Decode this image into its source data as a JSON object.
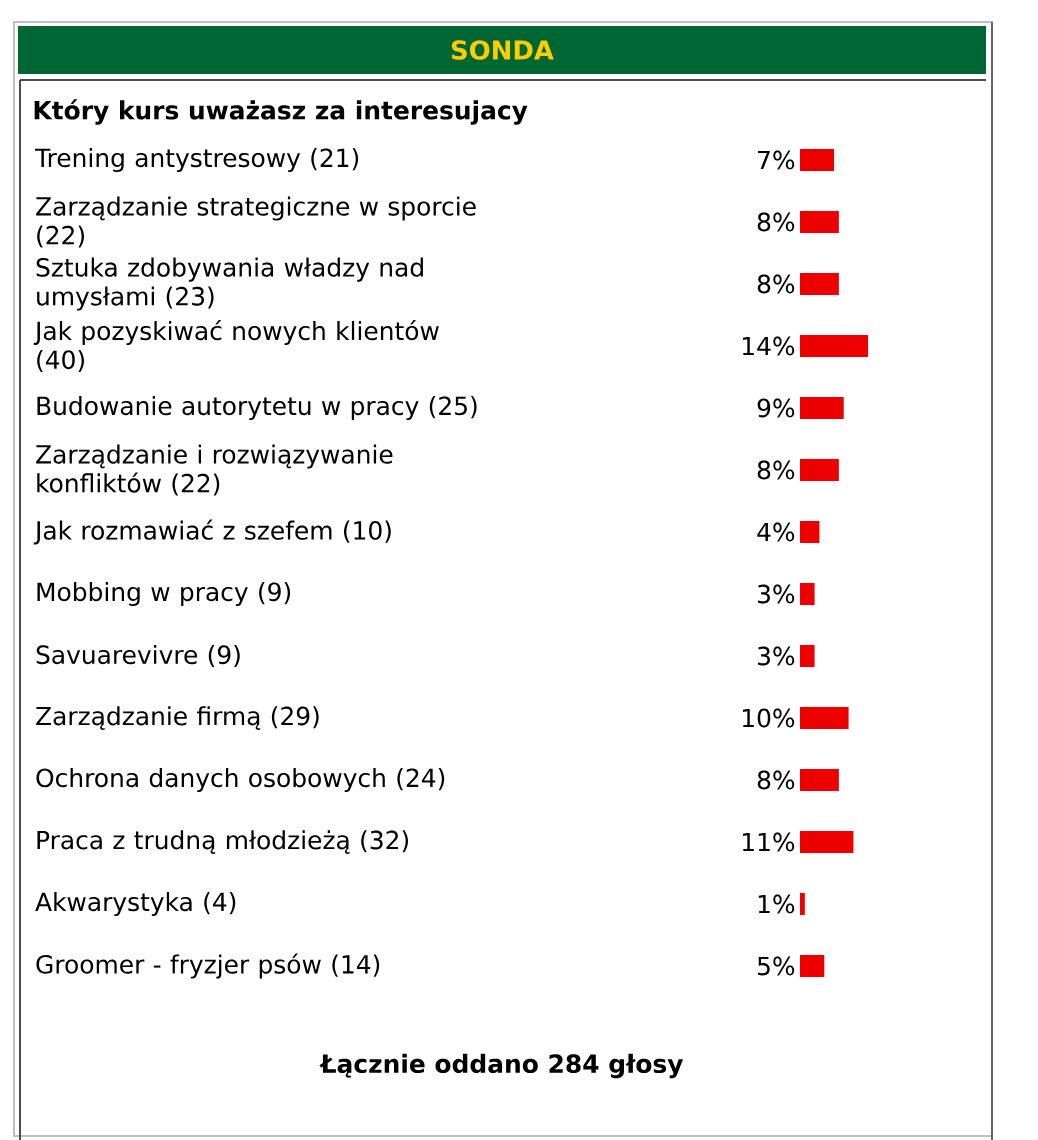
{
  "chart_data": {
    "type": "bar",
    "orientation": "horizontal",
    "title": "SONDA",
    "subtitle": "Który kurs uważasz za interesujacy",
    "categories": [
      "Trening antystresowy (21)",
      "Zarządzanie strategiczne w sporcie (22)",
      "Sztuka zdobywania władzy nad umysłami (23)",
      "Jak pozyskiwać nowych klientów (40)",
      "Budowanie autorytetu w pracy (25)",
      "Zarządzanie i rozwiązywanie konfliktów (22)",
      "Jak rozmawiać z szefem (10)",
      "Mobbing w pracy (9)",
      "Savuarevivre (9)",
      "Zarządzanie firmą (29)",
      "Ochrona danych osobowych (24)",
      "Praca z trudną młodzieżą (32)",
      "Akwarystyka (4)",
      "Groomer - fryzjer psów (14)"
    ],
    "values": [
      7,
      8,
      8,
      14,
      9,
      8,
      4,
      3,
      3,
      10,
      8,
      11,
      1,
      5
    ],
    "value_labels": [
      "7%",
      "8%",
      "8%",
      "14%",
      "9%",
      "8%",
      "4%",
      "3%",
      "3%",
      "10%",
      "8%",
      "11%",
      "1%",
      "5%"
    ],
    "color": "#ee0000",
    "tick_labels": "y",
    "annotations": [
      "Łącznie oddano 284 głosy"
    ]
  }
}
